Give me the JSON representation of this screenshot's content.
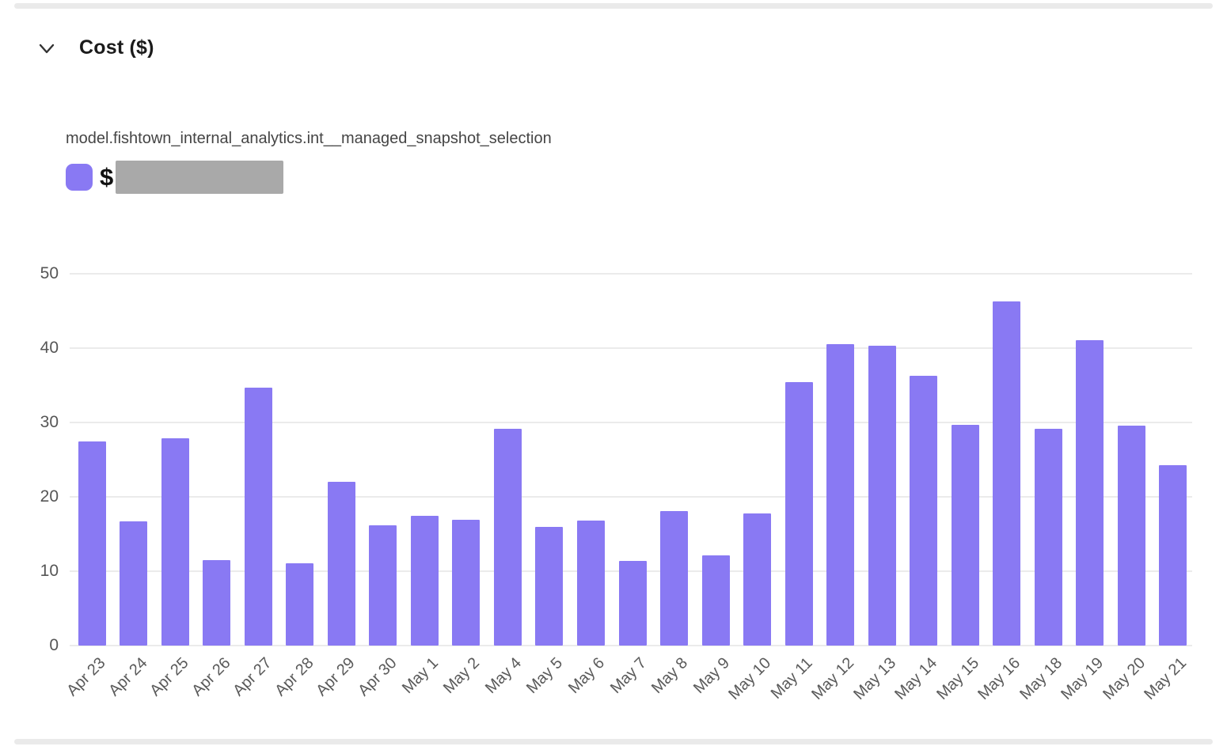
{
  "header": {
    "title": "Cost ($)"
  },
  "legend": {
    "series_name": "model.fishtown_internal_analytics.int__managed_snapshot_selection",
    "value_prefix": "$",
    "value_redacted": true
  },
  "colors": {
    "bar": "#8979f3",
    "redaction": "#a9a9a9",
    "gridline": "#ebebeb"
  },
  "chart_data": {
    "type": "bar",
    "title": "Cost ($)",
    "series_label": "model.fishtown_internal_analytics.int__managed_snapshot_selection",
    "categories": [
      "Apr 23",
      "Apr 24",
      "Apr 25",
      "Apr 26",
      "Apr 27",
      "Apr 28",
      "Apr 29",
      "Apr 30",
      "May 1",
      "May 2",
      "May 4",
      "May 5",
      "May 6",
      "May 7",
      "May 8",
      "May 9",
      "May 10",
      "May 11",
      "May 12",
      "May 13",
      "May 14",
      "May 15",
      "May 16",
      "May 18",
      "May 19",
      "May 20",
      "May 21"
    ],
    "values": [
      27.4,
      16.7,
      27.9,
      11.5,
      34.7,
      11.1,
      22.0,
      16.2,
      17.4,
      16.9,
      29.1,
      16.0,
      16.8,
      11.4,
      18.1,
      12.1,
      17.8,
      35.4,
      40.5,
      40.3,
      36.3,
      29.7,
      46.3,
      29.1,
      41.1,
      29.6,
      24.3
    ],
    "xlabel": "",
    "ylabel": "",
    "ylim": [
      0,
      50
    ],
    "yticks": [
      0,
      10,
      20,
      30,
      40,
      50
    ],
    "grid": true,
    "legend_position": "top-left",
    "bar_color": "#8979f3"
  }
}
